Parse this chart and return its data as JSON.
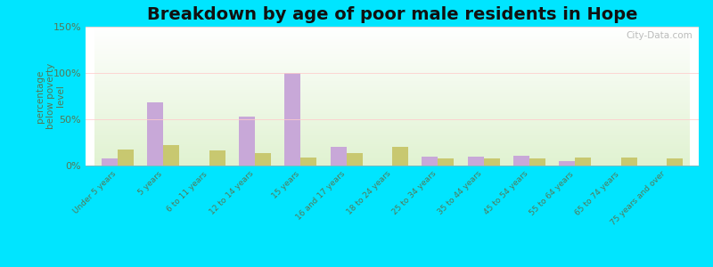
{
  "title": "Breakdown by age of poor male residents in Hope",
  "ylabel": "percentage\nbelow poverty\nlevel",
  "categories": [
    "Under 5 years",
    "5 years",
    "6 to 11 years",
    "12 to 14 years",
    "15 years",
    "16 and 17 years",
    "18 to 24 years",
    "25 to 34 years",
    "35 to 44 years",
    "45 to 54 years",
    "55 to 64 years",
    "65 to 74 years",
    "75 years and over"
  ],
  "hope_values": [
    8,
    68,
    0,
    53,
    100,
    20,
    0,
    10,
    10,
    11,
    5,
    0,
    0
  ],
  "indiana_values": [
    17,
    22,
    16,
    13,
    9,
    13,
    20,
    8,
    8,
    8,
    9,
    9,
    8
  ],
  "hope_color": "#c8a8d8",
  "indiana_color": "#c8c870",
  "outer_bg": "#00e5ff",
  "ylim": [
    0,
    150
  ],
  "yticks": [
    0,
    50,
    100,
    150
  ],
  "ytick_labels": [
    "0%",
    "50%",
    "100%",
    "150%"
  ],
  "bar_width": 0.35,
  "title_fontsize": 14,
  "watermark": "City-Data.com",
  "tick_color": "#557755",
  "label_color": "#557755"
}
